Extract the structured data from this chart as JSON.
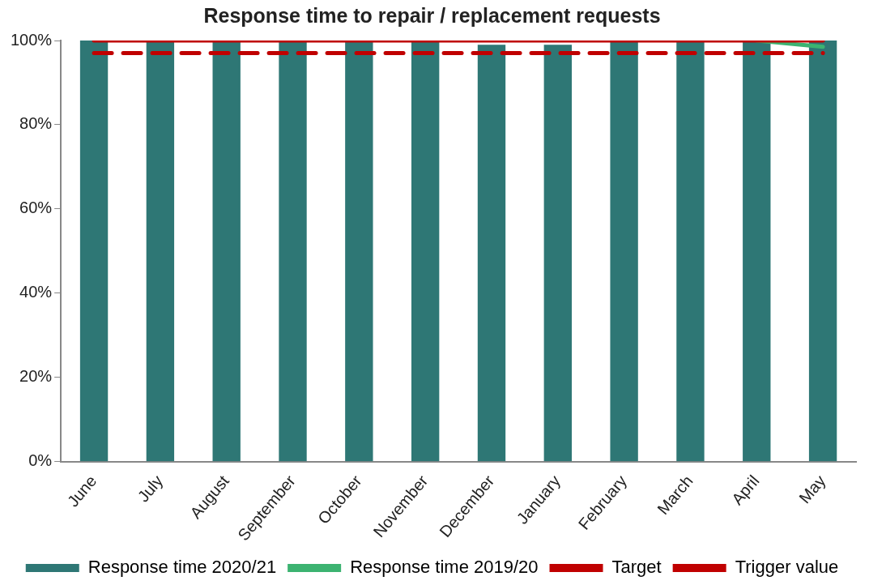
{
  "chart_data": {
    "type": "bar",
    "title": "Response time to repair / replacement requests",
    "categories": [
      "June",
      "July",
      "August",
      "September",
      "October",
      "November",
      "December",
      "January",
      "February",
      "March",
      "April",
      "May"
    ],
    "series": [
      {
        "name": "Response time 2020/21",
        "color": "#2e7775",
        "values": [
          100,
          100,
          100,
          100,
          100,
          100,
          99,
          99,
          100,
          100,
          100,
          100
        ]
      },
      {
        "name": "Response time 2019/20",
        "type": "line",
        "color": "#3cb371",
        "values": [
          null,
          null,
          null,
          null,
          null,
          null,
          null,
          null,
          null,
          null,
          100,
          98.5
        ]
      },
      {
        "name": "Target",
        "type": "line",
        "color": "#c00000",
        "values": [
          100,
          100,
          100,
          100,
          100,
          100,
          100,
          100,
          100,
          100,
          100,
          100
        ]
      },
      {
        "name": "Trigger value",
        "type": "line",
        "color": "#c00000",
        "line_style": "dashed",
        "values": [
          97,
          97,
          97,
          97,
          97,
          97,
          97,
          97,
          97,
          97,
          97,
          97
        ]
      }
    ],
    "ylim": [
      0,
      100
    ],
    "yticks": [
      {
        "value": 0,
        "label": "0%"
      },
      {
        "value": 20,
        "label": "20%"
      },
      {
        "value": 40,
        "label": "40%"
      },
      {
        "value": 60,
        "label": "60%"
      },
      {
        "value": 80,
        "label": "80%"
      },
      {
        "value": 100,
        "label": "100%"
      }
    ],
    "grid": false,
    "legend": "bottom",
    "marker": "none"
  }
}
